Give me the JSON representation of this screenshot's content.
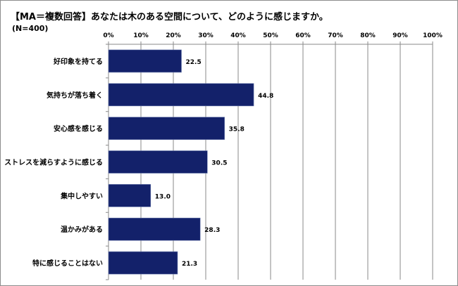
{
  "chart_data": {
    "type": "bar",
    "orientation": "horizontal",
    "title": "【MA＝複数回答】あなたは木のある空間について、どのように感じますか。",
    "subtitle": "(N=400)",
    "categories": [
      "好印象を持てる",
      "気持ちが落ち着く",
      "安心感を感じる",
      "ストレスを減らすように感じる",
      "集中しやすい",
      "温かみがある",
      "特に感じることはない"
    ],
    "values": [
      22.5,
      44.8,
      35.8,
      30.5,
      13.0,
      28.3,
      21.3
    ],
    "value_labels": [
      "22.5",
      "44.8",
      "35.8",
      "30.5",
      "13.0",
      "28.3",
      "21.3"
    ],
    "xlim": [
      0,
      100
    ],
    "x_ticks": [
      "0%",
      "10%",
      "20%",
      "30%",
      "40%",
      "50%",
      "60%",
      "70%",
      "80%",
      "90%",
      "100%"
    ],
    "x_axis_position": "top",
    "grid": true,
    "bar_color": "#13216a"
  }
}
